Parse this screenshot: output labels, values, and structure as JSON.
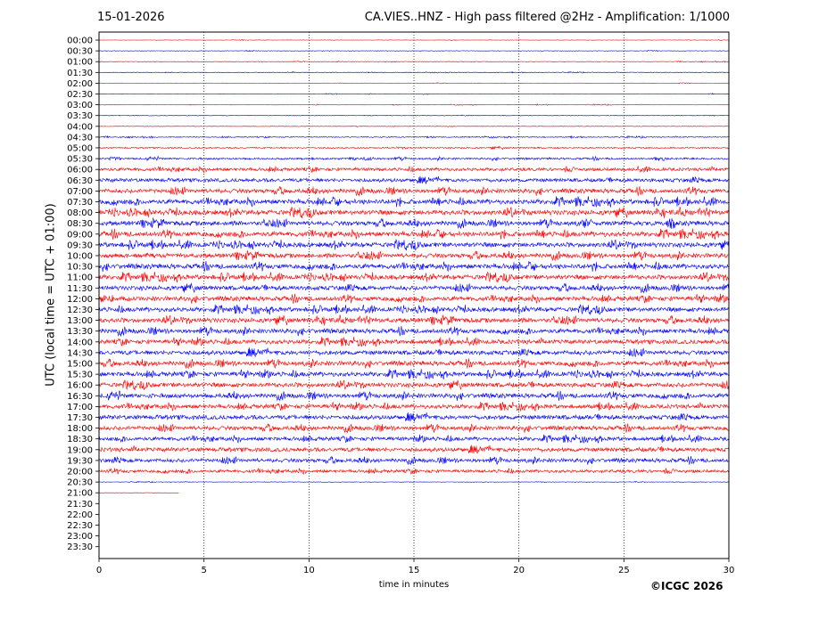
{
  "header": {
    "date": "15-01-2026",
    "title": "CA.VIES..HNZ - High pass filtered @2Hz - Amplification: 1/1000"
  },
  "footer": {
    "copyright": "©ICGC 2026"
  },
  "chart_data": {
    "type": "line",
    "title": "CA.VIES..HNZ - High pass filtered @2Hz - Amplification: 1/1000",
    "xlabel": "time in minutes",
    "ylabel": "UTC (local time = UTC + 01:00)",
    "xlim": [
      0,
      30
    ],
    "x_ticks": [
      "0",
      "5",
      "10",
      "15",
      "20",
      "25",
      "30"
    ],
    "vertical_grid_at_minutes": [
      5,
      10,
      15,
      20,
      25
    ],
    "grid": "dotted vertical lines",
    "row_labels": [
      "00:00",
      "00:30",
      "01:00",
      "01:30",
      "02:00",
      "02:30",
      "03:00",
      "03:30",
      "04:00",
      "04:30",
      "05:00",
      "05:30",
      "06:00",
      "06:30",
      "07:00",
      "07:30",
      "08:00",
      "08:30",
      "09:00",
      "09:30",
      "10:00",
      "10:30",
      "11:00",
      "11:30",
      "12:00",
      "12:30",
      "13:00",
      "13:30",
      "14:00",
      "14:30",
      "15:00",
      "15:30",
      "16:00",
      "16:30",
      "17:00",
      "17:30",
      "18:00",
      "18:30",
      "19:00",
      "19:30",
      "20:00",
      "20:30",
      "21:00",
      "21:30",
      "22:00",
      "22:30",
      "23:00",
      "23:30"
    ],
    "series_colors": {
      "hour_rows": "#ff0000",
      "half_hour_rows": "#0000ff"
    },
    "recorded_rows": 43,
    "last_row_minutes": 3.8,
    "relative_noise_level": [
      0.3,
      0.35,
      0.35,
      0.35,
      0.35,
      0.35,
      0.35,
      0.35,
      0.35,
      0.6,
      0.9,
      1.2,
      2.0,
      2.3,
      2.7,
      3.0,
      3.1,
      2.9,
      3.0,
      3.0,
      2.8,
      3.0,
      2.9,
      2.8,
      2.8,
      2.8,
      2.9,
      2.8,
      2.7,
      2.8,
      2.8,
      2.8,
      2.8,
      2.8,
      2.6,
      2.8,
      2.6,
      2.4,
      2.6,
      2.4,
      1.9,
      0.35,
      0.2
    ]
  }
}
